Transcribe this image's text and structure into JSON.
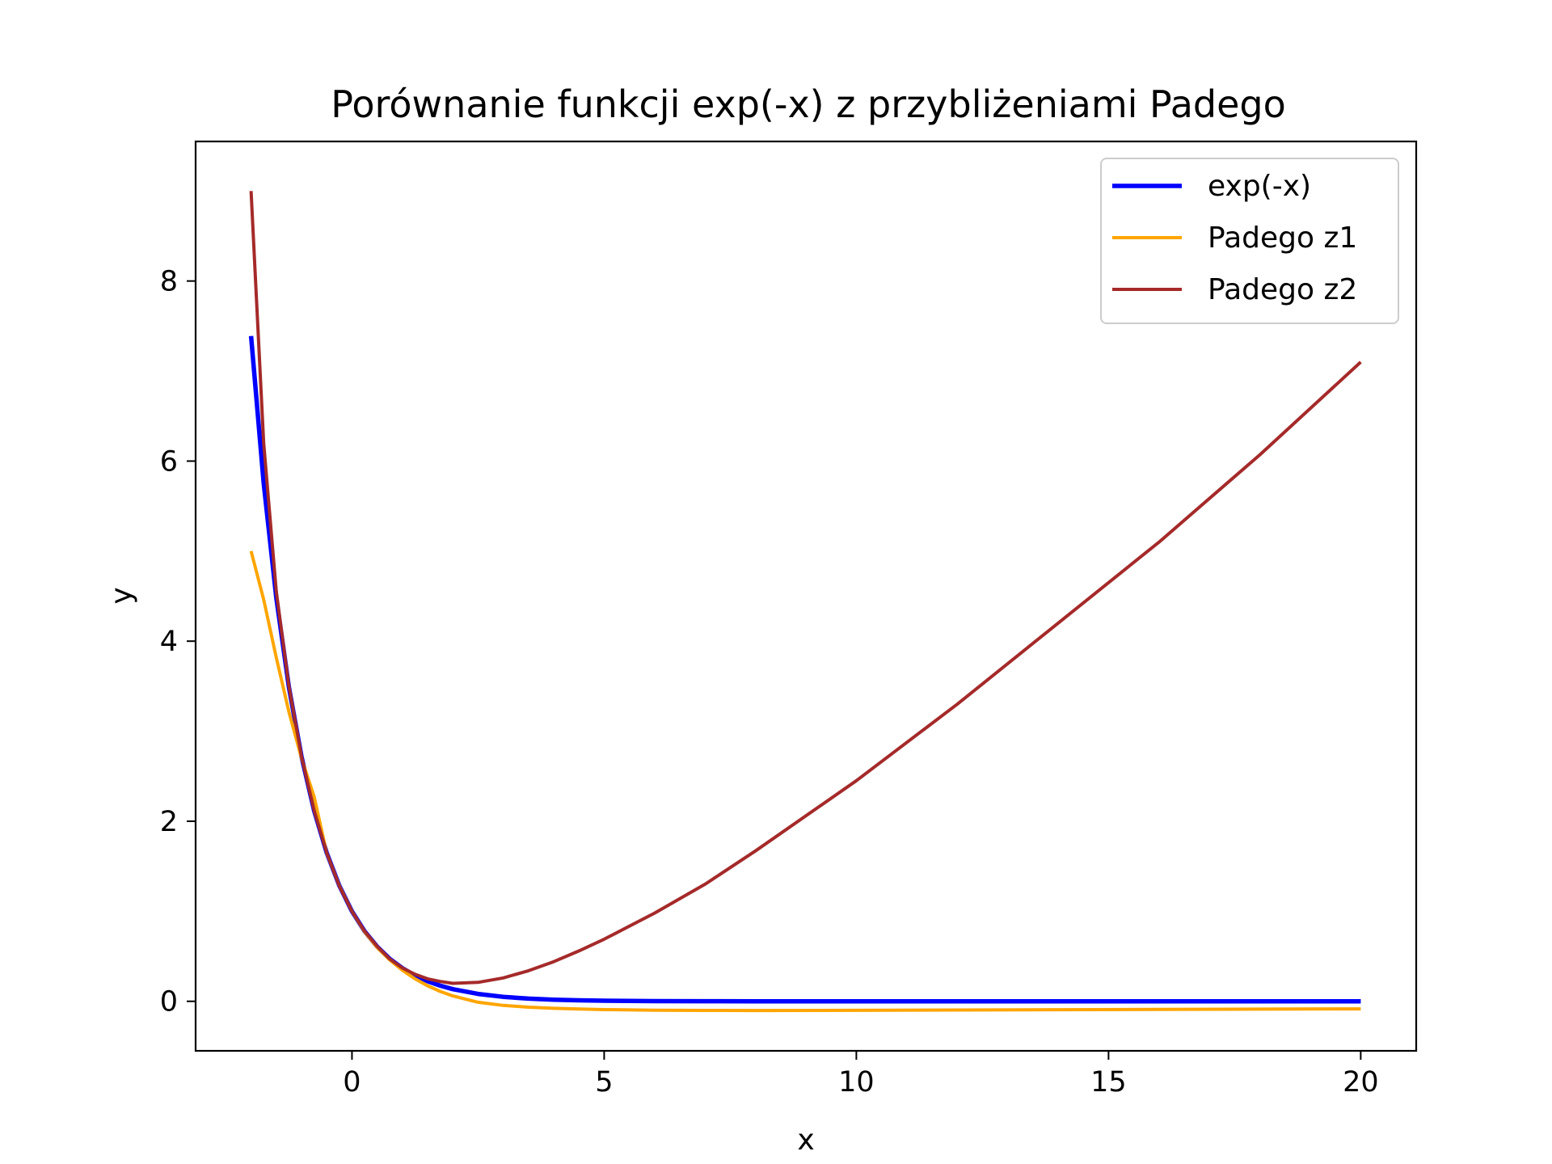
{
  "chart_data": {
    "type": "line",
    "title": "Porównanie funkcji exp(-x) z przybliżeniami Padego",
    "xlabel": "x",
    "ylabel": "y",
    "xlim": [
      -3.1,
      21.1
    ],
    "ylim": [
      -0.55,
      9.55
    ],
    "xticks": [
      0,
      5,
      10,
      15,
      20
    ],
    "yticks": [
      0,
      2,
      4,
      6,
      8
    ],
    "grid": false,
    "legend_position": "upper right",
    "series": [
      {
        "name": "exp(-x)",
        "color": "#0000ff",
        "x": [
          -2,
          -1.75,
          -1.5,
          -1.25,
          -1,
          -0.75,
          -0.5,
          -0.25,
          0,
          0.25,
          0.5,
          0.75,
          1,
          1.25,
          1.5,
          1.75,
          2,
          2.5,
          3,
          3.5,
          4,
          4.5,
          5,
          6,
          7,
          8,
          10,
          12,
          14,
          16,
          18,
          20
        ],
        "y": [
          7.389,
          5.755,
          4.482,
          3.49,
          2.718,
          2.117,
          1.649,
          1.284,
          1.0,
          0.779,
          0.607,
          0.472,
          0.368,
          0.287,
          0.223,
          0.174,
          0.135,
          0.082,
          0.05,
          0.03,
          0.018,
          0.011,
          0.007,
          0.002,
          0.001,
          0.0,
          0.0,
          0.0,
          0.0,
          0.0,
          0.0,
          0.0
        ]
      },
      {
        "name": "Padego z1",
        "color": "#ffa500",
        "x": [
          -2,
          -1.75,
          -1.5,
          -1.25,
          -1,
          -0.75,
          -0.5,
          -0.25,
          0,
          0.25,
          0.5,
          0.75,
          1,
          1.25,
          1.5,
          1.75,
          2,
          2.5,
          3,
          3.5,
          4,
          4.5,
          5,
          6,
          7,
          8,
          10,
          12,
          14,
          16,
          18,
          20
        ],
        "y": [
          5.0,
          4.462,
          3.818,
          3.215,
          2.7,
          2.273,
          1.645,
          1.284,
          1.0,
          0.772,
          0.597,
          0.459,
          0.345,
          0.25,
          0.173,
          0.11,
          0.06,
          -0.01,
          -0.045,
          -0.065,
          -0.078,
          -0.086,
          -0.092,
          -0.098,
          -0.101,
          -0.102,
          -0.1,
          -0.097,
          -0.093,
          -0.09,
          -0.087,
          -0.084
        ]
      },
      {
        "name": "Padego z2",
        "color": "#a52a2a",
        "x": [
          -2,
          -1.75,
          -1.5,
          -1.25,
          -1,
          -0.75,
          -0.5,
          -0.25,
          0,
          0.25,
          0.5,
          0.75,
          1,
          1.25,
          1.5,
          1.75,
          2,
          2.5,
          3,
          3.5,
          4,
          4.5,
          5,
          6,
          7,
          8,
          10,
          12,
          14,
          16,
          18,
          20
        ],
        "y": [
          9.0,
          6.2,
          4.55,
          3.5,
          2.72,
          2.12,
          1.65,
          1.28,
          1.0,
          0.78,
          0.61,
          0.47,
          0.37,
          0.3,
          0.25,
          0.22,
          0.2,
          0.21,
          0.26,
          0.34,
          0.44,
          0.56,
          0.69,
          0.98,
          1.3,
          1.67,
          2.45,
          3.3,
          4.2,
          5.1,
          6.07,
          7.1
        ]
      }
    ]
  }
}
